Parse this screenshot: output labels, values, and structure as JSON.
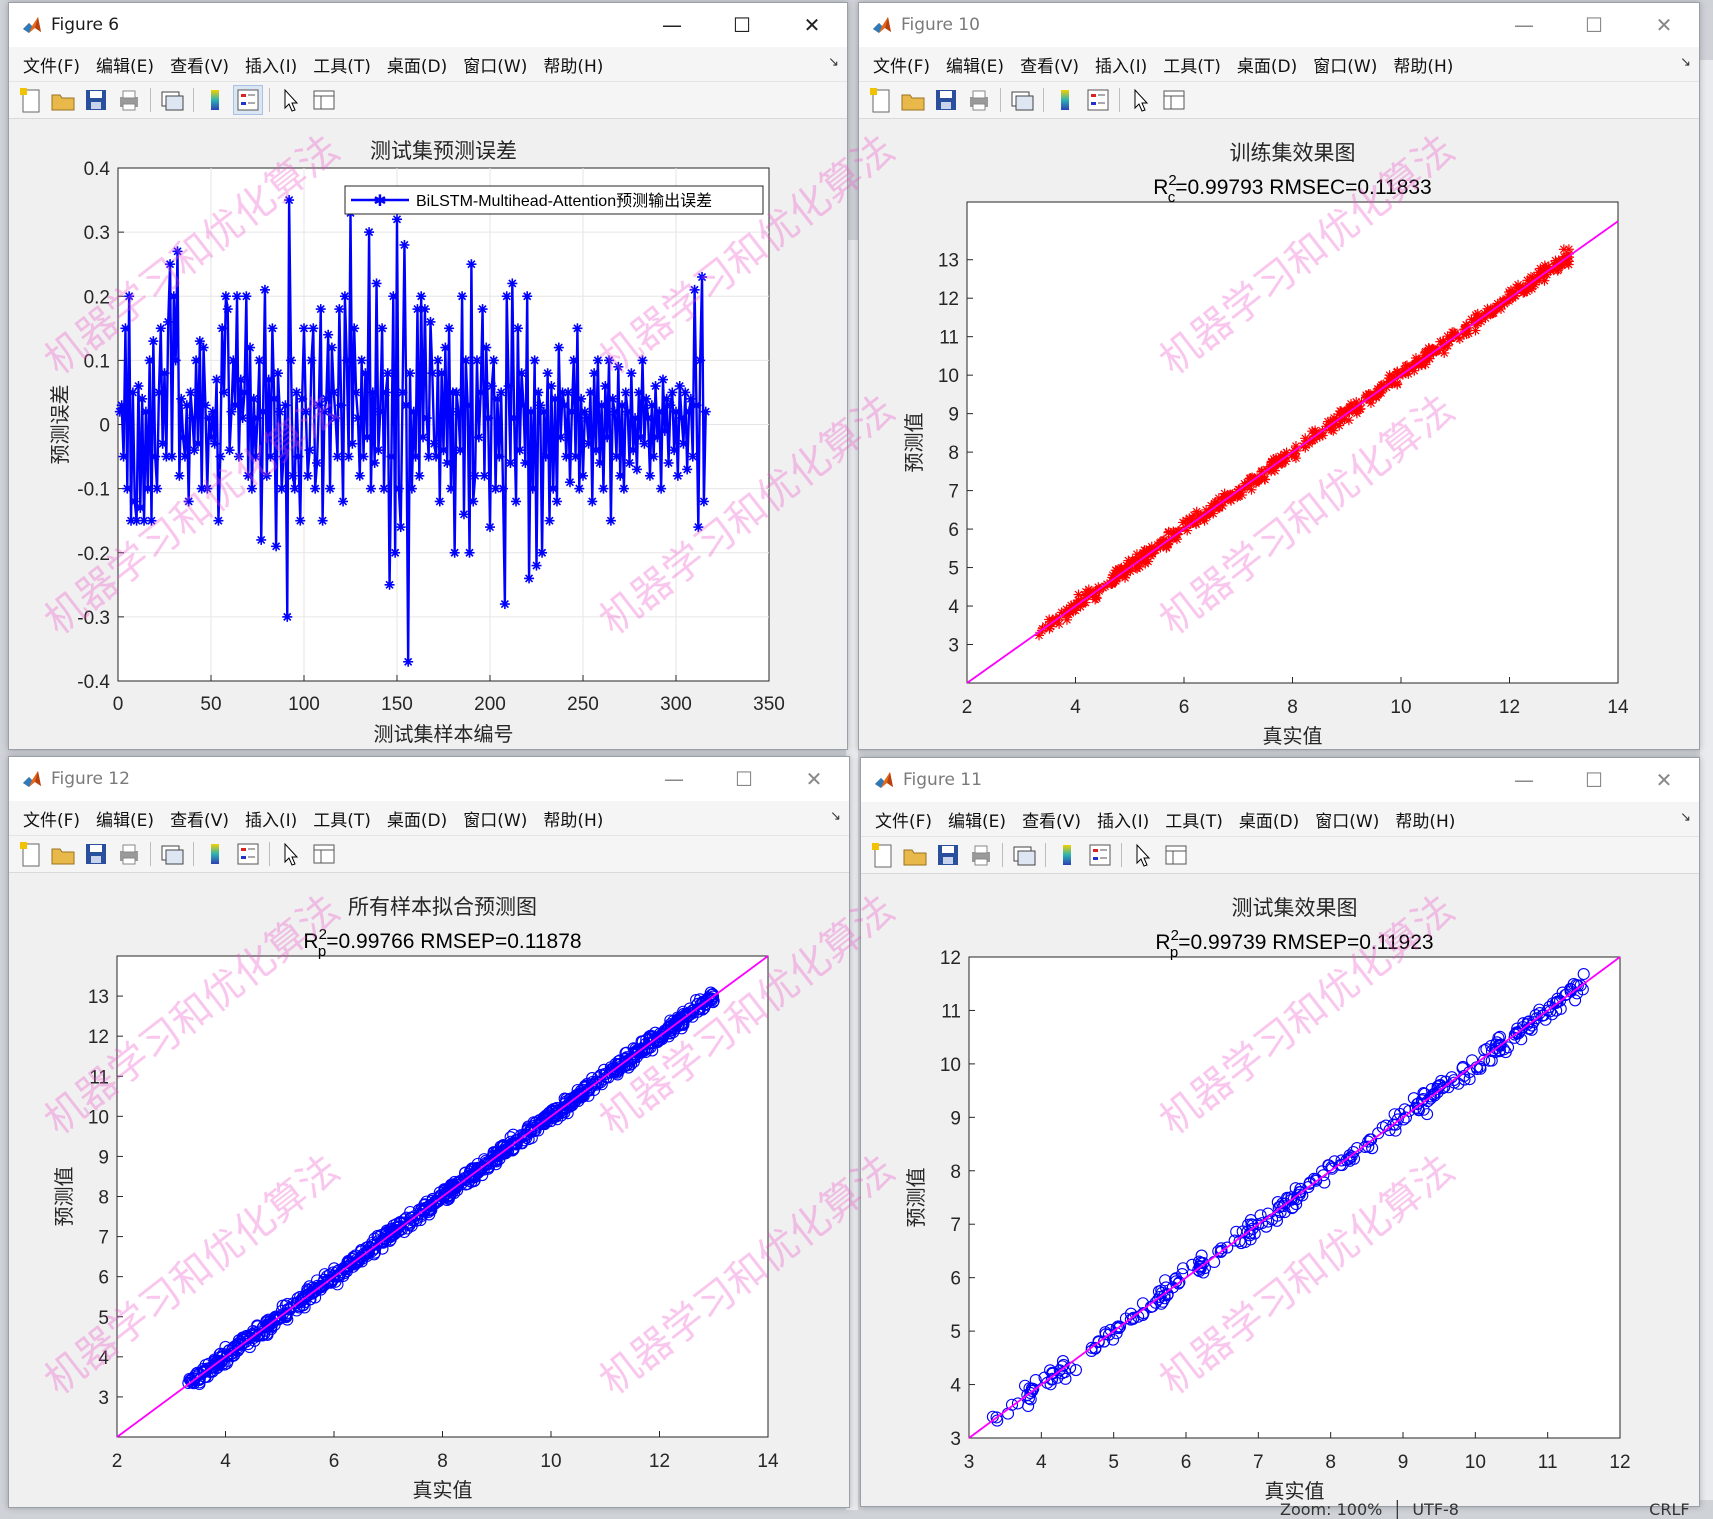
{
  "menus": [
    "文件(F)",
    "编辑(E)",
    "查看(V)",
    "插入(I)",
    "工具(T)",
    "桌面(D)",
    "窗口(W)",
    "帮助(H)"
  ],
  "colors": {
    "blue": "#0000ff",
    "red": "#ff0000",
    "magenta": "#ff00ff",
    "grid": "#e6e6e6",
    "window_bg": "#f0f0f0"
  },
  "status": {
    "zoom": "Zoom: 100%",
    "encoding": "UTF-8",
    "eol": "CRLF"
  },
  "watermark": "机器学习和优化算法",
  "windows": {
    "fig6": {
      "title": "Figure 6",
      "active": true
    },
    "fig10": {
      "title": "Figure 10",
      "active": false
    },
    "fig12": {
      "title": "Figure 12",
      "active": false
    },
    "fig11": {
      "title": "Figure 11",
      "active": false
    }
  },
  "chart_data": [
    {
      "id": "fig6",
      "type": "line",
      "title": "测试集预测误差",
      "xlabel": "测试集样本编号",
      "ylabel": "预测误差",
      "xlim": [
        0,
        350
      ],
      "ylim": [
        -0.4,
        0.4
      ],
      "xticks": [
        0,
        50,
        100,
        150,
        200,
        250,
        300,
        350
      ],
      "yticks": [
        -0.4,
        -0.3,
        -0.2,
        -0.1,
        0,
        0.1,
        0.2,
        0.3,
        0.4
      ],
      "grid": true,
      "legend_position": "top-right",
      "series": [
        {
          "name": "BiLSTM-Multihead-Attention预测输出误差",
          "color": "#0000ff",
          "marker": "*",
          "x_start": 1,
          "x_step": 1,
          "y": [
            0.02,
            0.03,
            -0.05,
            0.15,
            -0.1,
            0.2,
            -0.15,
            0.05,
            -0.12,
            -0.15,
            0.06,
            -0.13,
            0.04,
            -0.15,
            0.02,
            -0.1,
            0.1,
            -0.15,
            0.13,
            -0.05,
            -0.1,
            0.05,
            0.15,
            -0.03,
            0.08,
            -0.05,
            0.16,
            0.25,
            -0.05,
            0.2,
            0.1,
            0.27,
            -0.08,
            0.04,
            -0.02,
            -0.05,
            0.03,
            -0.12,
            0.05,
            0.01,
            -0.04,
            0.1,
            -0.03,
            0.13,
            -0.1,
            0.12,
            0.03,
            -0.1,
            0.01,
            -0.02,
            0.02,
            -0.03,
            0.07,
            -0.15,
            -0.05,
            0.15,
            0.05,
            0.2,
            0.18,
            -0.04,
            0.02,
            0.1,
            0.03,
            0.2,
            -0.05,
            0.07,
            0.01,
            0.05,
            0.2,
            -0.08,
            0.12,
            -0.1,
            0.04,
            -0.05,
            0.01,
            0.1,
            -0.18,
            0.02,
            0.21,
            -0.08,
            0.07,
            -0.05,
            0.15,
            0.04,
            -0.19,
            0.08,
            0.02,
            -0.1,
            -0.05,
            0.03,
            -0.3,
            0.35,
            0.1,
            -0.08,
            -0.1,
            0.05,
            -0.05,
            -0.15,
            0.04,
            0.15,
            0.02,
            -0.08,
            -0.04,
            0.1,
            0.15,
            -0.1,
            -0.06,
            0.03,
            0.18,
            -0.15,
            0.02,
            0.04,
            0.14,
            -0.1,
            0.12,
            0.05,
            0.01,
            -0.05,
            0.18,
            0.03,
            -0.12,
            0.2,
            0.1,
            -0.05,
            0.33,
            -0.03,
            0.15,
            0.05,
            0.01,
            -0.08,
            0.1,
            -0.05,
            0.08,
            -0.02,
            0.3,
            -0.1,
            0.05,
            -0.06,
            0.22,
            -0.04,
            0.02,
            0.15,
            -0.1,
            0.05,
            0.08,
            -0.25,
            -0.05,
            0.2,
            -0.2,
            0.32,
            -0.1,
            -0.16,
            0.05,
            0.28,
            0.03,
            -0.37,
            0.08,
            -0.1,
            0.02,
            -0.05,
            0.18,
            -0.08,
            0.2,
            -0.02,
            0.18,
            0.01,
            -0.05,
            0.16,
            0.08,
            -0.03,
            -0.05,
            0.1,
            -0.12,
            0.08,
            -0.04,
            0.12,
            -0.06,
            0.15,
            -0.1,
            0.05,
            -0.2,
            0.05,
            0.02,
            -0.04,
            0.2,
            -0.14,
            0.1,
            0.03,
            -0.2,
            0.25,
            -0.12,
            -0.08,
            0.1,
            -0.02,
            0.05,
            0.18,
            -0.08,
            0.12,
            0.01,
            -0.16,
            0.06,
            0.1,
            -0.1,
            0.04,
            -0.05,
            0.05,
            -0.1,
            -0.28,
            0.2,
            0.06,
            -0.06,
            0.22,
            0.01,
            -0.12,
            0.15,
            -0.04,
            0.08,
            0.03,
            -0.06,
            0.2,
            -0.24,
            0.02,
            -0.1,
            0.1,
            -0.22,
            0.05,
            0.03,
            -0.2,
            0.02,
            -0.05,
            0.08,
            -0.15,
            0.06,
            -0.1,
            0.04,
            -0.12,
            0.12,
            -0.02,
            0.05,
            0.03,
            -0.05,
            0.05,
            -0.09,
            0.02,
            0.1,
            -0.05,
            0.15,
            -0.1,
            0.04,
            -0.08,
            0.02,
            0.01,
            -0.03,
            0.05,
            -0.12,
            0.08,
            -0.04,
            0.1,
            -0.06,
            0.03,
            -0.1,
            0.06,
            -0.02,
            0.1,
            -0.15,
            0.04,
            0.02,
            -0.05,
            0.09,
            -0.08,
            0.03,
            -0.1,
            0.05,
            0.02,
            -0.06,
            0.08,
            -0.04,
            0.01,
            -0.07,
            0.05,
            -0.02,
            0.1,
            -0.03,
            0.04,
            0.01,
            -0.08,
            0.03,
            -0.05,
            0.06,
            -0.02,
            0.02,
            -0.1,
            0.07,
            -0.01,
            0.04,
            -0.06,
            0.03,
            0.05,
            -0.04,
            0.02,
            -0.08,
            0.06,
            0.01,
            -0.03,
            0.05,
            -0.07,
            0.02,
            0.04,
            -0.05,
            0.21,
            0.03,
            -0.16,
            0.1,
            0.23,
            -0.12,
            0.02
          ]
        }
      ]
    },
    {
      "id": "fig10",
      "type": "scatter",
      "title": "训练集效果图",
      "subtitle": {
        "prefix": "R",
        "sup": "2",
        "sub": "c",
        "suffix": "=0.99793  RMSEC=0.11833"
      },
      "xlabel": "真实值",
      "ylabel": "预测值",
      "xlim": [
        2,
        14
      ],
      "ylim": [
        2,
        14.5
      ],
      "xticks": [
        2,
        4,
        6,
        8,
        10,
        12,
        14
      ],
      "yticks": [
        3,
        4,
        5,
        6,
        7,
        8,
        9,
        10,
        11,
        12,
        13
      ],
      "grid": false,
      "marker": "*",
      "marker_color": "#ff0000",
      "line_color": "#ff00ff",
      "range": [
        3.3,
        13.1
      ],
      "n_points": 600,
      "spread": 0.12
    },
    {
      "id": "fig12",
      "type": "scatter",
      "title": "所有样本拟合预测图",
      "subtitle": {
        "prefix": "R",
        "sup": "2",
        "sub": "p",
        "suffix": "=0.99766  RMSEP=0.11878"
      },
      "xlabel": "真实值",
      "ylabel": "预测值",
      "xlim": [
        2,
        14
      ],
      "ylim": [
        2,
        14
      ],
      "xticks": [
        2,
        4,
        6,
        8,
        10,
        12,
        14
      ],
      "yticks": [
        3,
        4,
        5,
        6,
        7,
        8,
        9,
        10,
        11,
        12,
        13
      ],
      "grid": false,
      "marker": "o",
      "marker_color": "#0000ff",
      "line_color": "#ff00ff",
      "range": [
        3.3,
        13.0
      ],
      "n_points": 900,
      "spread": 0.12
    },
    {
      "id": "fig11",
      "type": "scatter",
      "title": "测试集效果图",
      "subtitle": {
        "prefix": "R",
        "sup": "2",
        "sub": "p",
        "suffix": "=0.99739  RMSEP=0.11923"
      },
      "xlabel": "真实值",
      "ylabel": "预测值",
      "xlim": [
        3,
        12
      ],
      "ylim": [
        3,
        12
      ],
      "xticks": [
        3,
        4,
        5,
        6,
        7,
        8,
        9,
        10,
        11,
        12
      ],
      "yticks": [
        3,
        4,
        5,
        6,
        7,
        8,
        9,
        10,
        11,
        12
      ],
      "grid": false,
      "marker": "o",
      "marker_color": "#0000ff",
      "line_color": "#ff00ff",
      "range": [
        3.3,
        11.5
      ],
      "n_points": 320,
      "spread": 0.12
    }
  ]
}
